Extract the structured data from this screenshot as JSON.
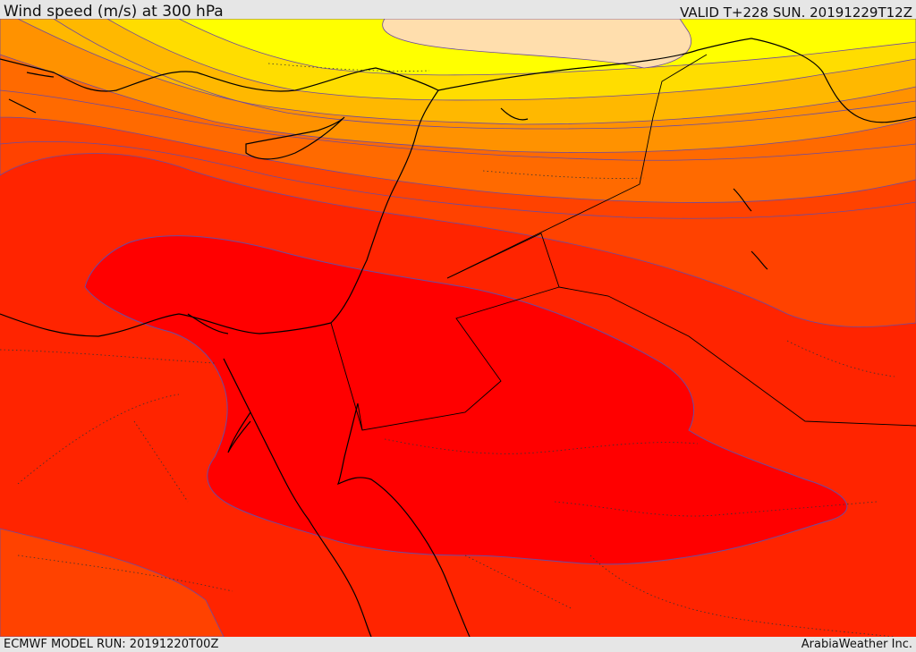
{
  "header": {
    "title": "Wind speed (m/s) at 300 hPa",
    "valid": "VALID T+228 SUN. 20191229T12Z"
  },
  "footer": {
    "model_run": "ECMWF MODEL RUN: 20191220T00Z",
    "credit": "ArabiaWeather Inc."
  },
  "colors": {
    "wind_bands_weakest_to_strongest": [
      "#ff0000",
      "#ff2400",
      "#ff4200",
      "#ff6a00",
      "#ff9200",
      "#ffb800",
      "#ffdd00",
      "#ffff00",
      "#ffdead"
    ],
    "contour_line": "#6d4aa0",
    "coastline": "#000000",
    "header_bg": "#e6e6e6"
  }
}
